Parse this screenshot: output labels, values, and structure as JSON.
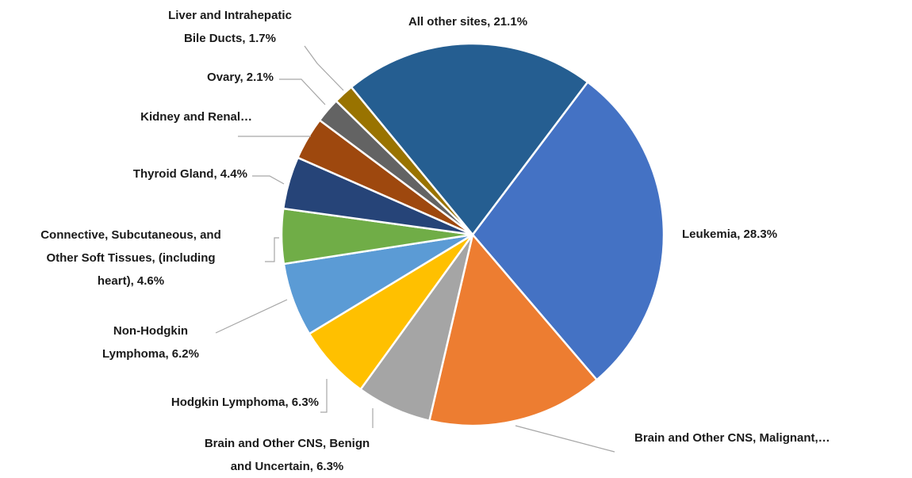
{
  "chart_data": {
    "type": "pie",
    "values": [
      28.3,
      14.8,
      6.3,
      6.3,
      6.2,
      4.6,
      4.4,
      3.6,
      2.1,
      1.7,
      21.1
    ],
    "value_labels": [
      "Leukemia, 28.3%",
      "Brain and Other CNS, Malignant,…",
      "Brain and Other CNS, Benign\nand Uncertain, 6.3%",
      "Hodgkin Lymphoma, 6.3%",
      "Non-Hodgkin\nLymphoma, 6.2%",
      "Connective, Subcutaneous, and\nOther Soft Tissues, (including\nheart), 4.6%",
      "Thyroid Gland, 4.4%",
      "Kidney and Renal…",
      "Ovary, 2.1%",
      "Liver and Intrahepatic\nBile Ducts, 1.7%",
      "All other sites, 21.1%"
    ],
    "colors": [
      "#4472c4",
      "#ed7d31",
      "#a5a5a5",
      "#ffc000",
      "#5b9bd5",
      "#70ad47",
      "#264478",
      "#9e480e",
      "#636363",
      "#997300",
      "#255e91"
    ]
  }
}
